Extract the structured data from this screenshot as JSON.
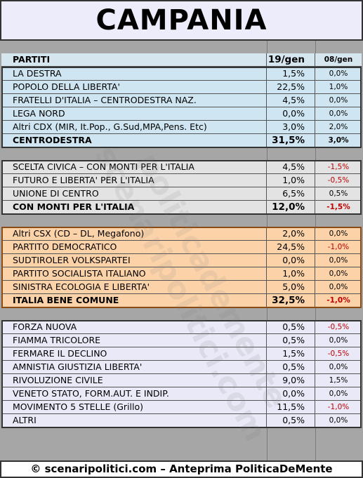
{
  "title": "CAMPANIA",
  "header": [
    "PARTITI",
    "19/gen",
    "08/gen"
  ],
  "groups": [
    {
      "color": "#cfe6f2",
      "rows": [
        [
          "LA DESTRA",
          "1,5%",
          "0,0%"
        ],
        [
          "POPOLO DELLA LIBERTA'",
          "22,5%",
          "1,0%"
        ],
        [
          "FRATELLI D'ITALIA – CENTRODESTRA NAZ.",
          "4,5%",
          "0,0%"
        ],
        [
          "LEGA NORD",
          "0,0%",
          "0,0%"
        ],
        [
          "Altri CDX (MIR, It.Pop., G.Sud,MPA,Pens. Etc)",
          "3,0%",
          "2,0%"
        ],
        [
          "CENTRODESTRA",
          "31,5%",
          "3,0%"
        ]
      ]
    },
    {
      "color": "#e3e3e3",
      "rows": [
        [
          "SCELTA CIVICA – CON MONTI PER L'ITALIA",
          "4,5%",
          "-1,5%"
        ],
        [
          "FUTURO E LIBERTA' PER L'ITALIA",
          "1,0%",
          "-0,5%"
        ],
        [
          "UNIONE DI CENTRO",
          "6,5%",
          "0,5%"
        ],
        [
          "CON MONTI PER L'ITALIA",
          "12,0%",
          "-1,5%"
        ]
      ]
    },
    {
      "color": "#fcd3a9",
      "rows": [
        [
          "Altri CSX (CD – DL, Megafono)",
          "2,0%",
          "0,0%"
        ],
        [
          "PARTITO DEMOCRATICO",
          "24,5%",
          "-1,0%"
        ],
        [
          "SUDTIROLER VOLKSPARTEI",
          "0,0%",
          "0,0%"
        ],
        [
          "PARTITO SOCIALISTA ITALIANO",
          "1,0%",
          "0,0%"
        ],
        [
          "SINISTRA ECOLOGIA E LIBERTA'",
          "5,0%",
          "0,0%"
        ],
        [
          "ITALIA BENE COMUNE",
          "32,5%",
          "-1,0%"
        ]
      ]
    },
    {
      "color": "#e9e9f7",
      "total": false,
      "rows": [
        [
          "FORZA NUOVA",
          "0,5%",
          "-0,5%"
        ],
        [
          "FIAMMA TRICOLORE",
          "0,5%",
          "0,0%"
        ],
        [
          "FERMARE IL DECLINO",
          "1,5%",
          "-0,5%"
        ],
        [
          "AMNISTIA GIUSTIZIA LIBERTA'",
          "0,5%",
          "0,0%"
        ],
        [
          "RIVOLUZIONE CIVILE",
          "9,0%",
          "1,5%"
        ],
        [
          "VENETO STATO, FORM.AUT. E INDIP.",
          "0,0%",
          "0,0%"
        ],
        [
          "MOVIMENTO 5 STELLE (Grillo)",
          "11,5%",
          "-1,0%"
        ],
        [
          "ALTRI",
          "0,5%",
          "0,0%"
        ]
      ]
    }
  ],
  "watermark": [
    "scenaripolitici.com",
    "politicademente"
  ],
  "footer": "© scenaripolitici.com – Anteprima PoliticaDeMente"
}
